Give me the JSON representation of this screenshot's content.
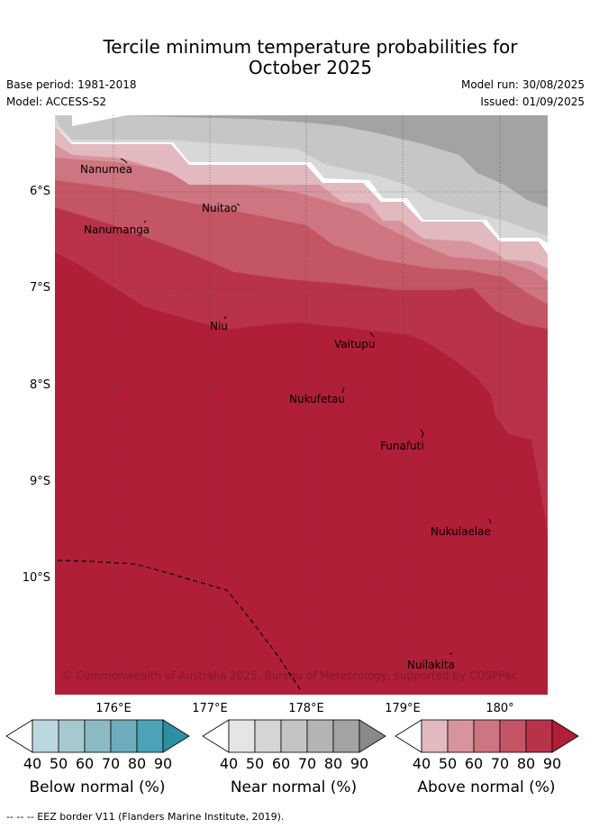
{
  "title_line1": "Tercile minimum temperature probabilities for",
  "title_line2": "October 2025",
  "base_period": "Base period: 1981-2018",
  "model": "Model: ACCESS-S2",
  "model_run": "Model run: 30/08/2025",
  "issued": "Issued: 01/09/2025",
  "copyright": "© Commonwealth of Australia 2025, Bureau of Meteorology, supported by COSPPac",
  "lat_labels": [
    "6°S",
    "7°S",
    "8°S",
    "9°S",
    "10°S"
  ],
  "lon_labels": [
    "176°E",
    "177°E",
    "178°E",
    "179°E",
    "180°"
  ],
  "places": [
    "Nanumea",
    "Nuitao",
    "Nanumanga",
    "Niu",
    "Vaitupu",
    "Nukufetau",
    "Funafuti",
    "Nukulaelae",
    "Nuilakita"
  ],
  "colorbars": [
    {
      "label": "Below normal (%)",
      "ticks": [
        "40",
        "50",
        "60",
        "70",
        "80",
        "90"
      ],
      "colors": [
        "#bcd8df",
        "#a5c9cf",
        "#8bbac5",
        "#6dacbc",
        "#4ba3b5",
        "#2d8fa3"
      ]
    },
    {
      "label": "Near normal (%)",
      "ticks": [
        "40",
        "50",
        "60",
        "70",
        "80",
        "90"
      ],
      "colors": [
        "#e5e5e5",
        "#d5d5d5",
        "#c4c4c4",
        "#b4b4b4",
        "#a3a3a3",
        "#8a8a8a"
      ]
    },
    {
      "label": "Above normal (%)",
      "ticks": [
        "40",
        "50",
        "60",
        "70",
        "80",
        "90"
      ],
      "colors": [
        "#e2b9bf",
        "#d8949c",
        "#cd7580",
        "#c45564",
        "#b8334a",
        "#b01e38"
      ]
    }
  ],
  "footer": "--  --  -- EEZ border V11 (Flanders Marine Institute, 2019).",
  "map_colors": {
    "white": "#ffffff",
    "nn40": "#d8d8d8",
    "nn50": "#c6c6c6",
    "nn60": "#a3a3a3",
    "an40": "#e2b9bf",
    "an50": "#d8949c",
    "an60": "#cd7580",
    "an70": "#c45564",
    "an80": "#b8334a",
    "an90": "#b01e38"
  }
}
